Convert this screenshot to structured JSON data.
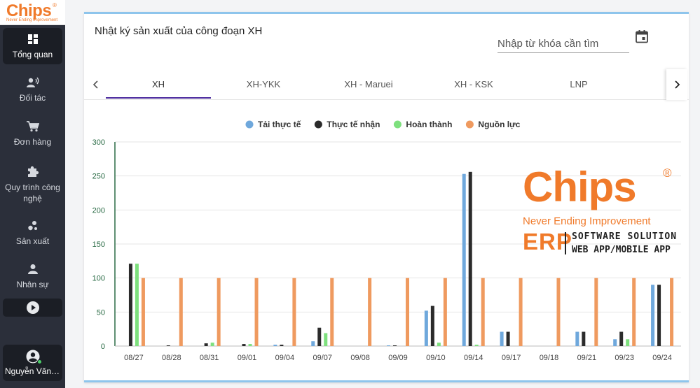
{
  "app": {
    "logo_text": "Chips",
    "logo_reg": "®",
    "logo_tagline": "Never Ending Improvement"
  },
  "sidebar": {
    "items": [
      {
        "label": "Tổng quan",
        "icon": "dashboard-icon",
        "active": true
      },
      {
        "label": "Đối tác",
        "icon": "partner-voice-icon"
      },
      {
        "label": "Đơn hàng",
        "icon": "cart-icon"
      },
      {
        "label": "Quy trình công nghệ",
        "icon": "puzzle-icon"
      },
      {
        "label": "Sản xuất",
        "icon": "bubbles-icon"
      },
      {
        "label": "Nhân sự",
        "icon": "person-icon"
      }
    ],
    "toggle_icon": "play-circle-icon",
    "user": {
      "name": "Nguyễn Văn ...",
      "icon": "account-circle-icon",
      "status": "online"
    }
  },
  "main": {
    "title": "Nhật ký sản xuất của công đoạn XH",
    "search": {
      "placeholder": "Nhập từ khóa cần tìm",
      "value": ""
    },
    "calendar_icon": "calendar-icon",
    "tabs": [
      {
        "label": "XH",
        "active": true
      },
      {
        "label": "XH-YKK"
      },
      {
        "label": "XH - Maruei"
      },
      {
        "label": "XH - KSK"
      },
      {
        "label": "LNP"
      }
    ],
    "tab_prev_icon": "chevron-left-icon",
    "tab_next_icon": "chevron-right-icon"
  },
  "watermark": {
    "brand": "Chips",
    "reg": "®",
    "slogan": "Never Ending Improvement",
    "erp": "ERP",
    "line1": "SOFTWARE SOLUTION",
    "line2": "WEB APP/MOBILE APP"
  },
  "chart_data": {
    "type": "bar",
    "categories": [
      "08/27",
      "08/28",
      "08/31",
      "09/01",
      "09/04",
      "09/07",
      "09/08",
      "09/09",
      "09/10",
      "09/14",
      "09/17",
      "09/18",
      "09/21",
      "09/23",
      "09/24"
    ],
    "series": [
      {
        "name": "Tải thực tế",
        "color": "#6fa8dc",
        "values": [
          0,
          0,
          0,
          0,
          2,
          7,
          0,
          1,
          52,
          253,
          21,
          0,
          21,
          10,
          90
        ]
      },
      {
        "name": "Thực tế nhận",
        "color": "#2b2b2b",
        "values": [
          121,
          1,
          4,
          3,
          2,
          27,
          0,
          1,
          59,
          256,
          21,
          0,
          21,
          21,
          90
        ]
      },
      {
        "name": "Hoàn thành",
        "color": "#7ee07e",
        "values": [
          121,
          0,
          5,
          3,
          0,
          19,
          0,
          0,
          5,
          2,
          0,
          0,
          0,
          10,
          0
        ]
      },
      {
        "name": "Nguồn lực",
        "color": "#ef9a5f",
        "values": [
          100,
          100,
          100,
          100,
          100,
          100,
          100,
          100,
          100,
          100,
          100,
          100,
          100,
          100,
          100
        ]
      }
    ],
    "ylim": [
      0,
      300
    ],
    "yticks": [
      0,
      50,
      100,
      150,
      200,
      250,
      300
    ],
    "grid": true,
    "legend_position": "top-center"
  }
}
